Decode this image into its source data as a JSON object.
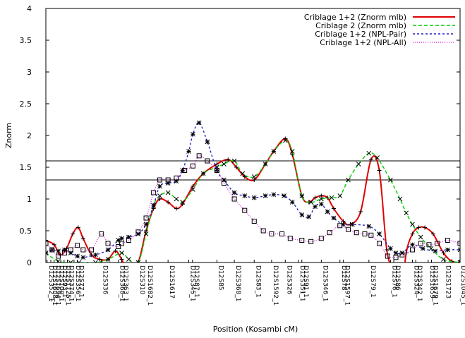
{
  "chart_data": {
    "type": "line",
    "xlabel": "Position (Kosambi cM)",
    "ylabel": "Znorm",
    "x_range": [
      0,
      100
    ],
    "ylim": [
      0,
      4
    ],
    "yticks": [
      "0",
      "0.5",
      "1",
      "1.5",
      "2",
      "2.5",
      "3",
      "3.5",
      "4"
    ],
    "grid": false,
    "legend_position": "top-right",
    "hlines": [
      1.3,
      1.6
    ],
    "markers": [
      {
        "label": "D12S352_1",
        "x": 0.3
      },
      {
        "label": "D12S1608_1",
        "x": 1.2
      },
      {
        "label": "D12S1694_1",
        "x": 2.0
      },
      {
        "label": "D12S100_1",
        "x": 2.8
      },
      {
        "label": "D12S93_1",
        "x": 3.6
      },
      {
        "label": "D12S1725_1",
        "x": 4.4
      },
      {
        "label": "D12S374_1",
        "x": 5.2
      },
      {
        "label": "D12S356_1",
        "x": 6.8
      },
      {
        "label": "D12S77_1",
        "x": 7.6
      },
      {
        "label": "D12S336",
        "x": 13.4
      },
      {
        "label": "D12S368_1",
        "x": 17.5
      },
      {
        "label": "D12S363_1",
        "x": 18.3
      },
      {
        "label": "D12S310",
        "x": 22.3
      },
      {
        "label": "D12S1682_1",
        "x": 24.2
      },
      {
        "label": "D12S1617",
        "x": 29.5
      },
      {
        "label": "D12S345_1",
        "x": 34.5
      },
      {
        "label": "D12S87_1",
        "x": 35.4
      },
      {
        "label": "D12S85",
        "x": 41.3
      },
      {
        "label": "D12S368_1",
        "x": 45.5
      },
      {
        "label": "D12S83_1",
        "x": 50.3
      },
      {
        "label": "D12S1592_1",
        "x": 54.5
      },
      {
        "label": "D12S326",
        "x": 57.8
      },
      {
        "label": "D12S351_1",
        "x": 61.0
      },
      {
        "label": "D12S91_1",
        "x": 61.8
      },
      {
        "label": "D12S346_1",
        "x": 66.5
      },
      {
        "label": "D12S78",
        "x": 71.0
      },
      {
        "label": "D12S1597_1",
        "x": 71.8
      },
      {
        "label": "D12S79_1",
        "x": 78.0
      },
      {
        "label": "D12S76_1",
        "x": 83.2
      },
      {
        "label": "D12S86",
        "x": 84.0
      },
      {
        "label": "D12S324",
        "x": 88.5
      },
      {
        "label": "D12S342_1",
        "x": 89.3
      },
      {
        "label": "D12S1659",
        "x": 92.3
      },
      {
        "label": "D12S1679_1",
        "x": 93.1
      },
      {
        "label": "D12S1723",
        "x": 96.2
      },
      {
        "label": "D12S1045_1",
        "x": 99.8
      }
    ],
    "series": [
      {
        "name": "Criblage 1+2 (Znorm mlb)",
        "color": "#e00000",
        "dash": "solid",
        "marker": "plus",
        "points": [
          [
            0,
            0.35
          ],
          [
            2,
            0.28
          ],
          [
            3.5,
            0.12
          ],
          [
            5,
            0.22
          ],
          [
            6.5,
            0.45
          ],
          [
            7.8,
            0.55
          ],
          [
            9,
            0.38
          ],
          [
            11,
            0.12
          ],
          [
            13,
            0.05
          ],
          [
            15,
            0.05
          ],
          [
            16.8,
            0.18
          ],
          [
            18.3,
            0.05
          ],
          [
            20,
            -0.15
          ],
          [
            22.3,
            0.0
          ],
          [
            24.2,
            0.5
          ],
          [
            26,
            0.85
          ],
          [
            27.5,
            1.0
          ],
          [
            29.5,
            0.95
          ],
          [
            31.5,
            0.85
          ],
          [
            33,
            0.92
          ],
          [
            35.5,
            1.2
          ],
          [
            38,
            1.4
          ],
          [
            41.3,
            1.55
          ],
          [
            44,
            1.62
          ],
          [
            46,
            1.5
          ],
          [
            48,
            1.35
          ],
          [
            50.3,
            1.3
          ],
          [
            53,
            1.55
          ],
          [
            55,
            1.75
          ],
          [
            57.8,
            1.95
          ],
          [
            59.5,
            1.7
          ],
          [
            61.8,
            1.05
          ],
          [
            63.5,
            0.95
          ],
          [
            65,
            1.02
          ],
          [
            66.5,
            1.05
          ],
          [
            68,
            1.02
          ],
          [
            69.5,
            0.85
          ],
          [
            71.8,
            0.65
          ],
          [
            73.5,
            0.6
          ],
          [
            76,
            0.8
          ],
          [
            78.5,
            1.62
          ],
          [
            80.5,
            1.45
          ],
          [
            82.3,
            0.2
          ],
          [
            84,
            -0.15
          ],
          [
            85.5,
            -0.6
          ],
          [
            87,
            0.15
          ],
          [
            88.5,
            0.45
          ],
          [
            90,
            0.55
          ],
          [
            91.5,
            0.55
          ],
          [
            93.5,
            0.45
          ],
          [
            96,
            0.15
          ],
          [
            98,
            0.02
          ],
          [
            100,
            0.0
          ]
        ]
      },
      {
        "name": "Criblage 2 (Znorm mlb)",
        "color": "#00cc00",
        "dash": "5 3",
        "marker": "x",
        "points": [
          [
            0,
            0.15
          ],
          [
            3,
            0.02
          ],
          [
            6,
            0.0
          ],
          [
            8,
            0.0
          ],
          [
            12,
            0.0
          ],
          [
            15,
            0.05
          ],
          [
            18.3,
            0.15
          ],
          [
            20,
            0.05
          ],
          [
            22.3,
            0.0
          ],
          [
            24.2,
            0.45
          ],
          [
            26,
            0.9
          ],
          [
            27.5,
            1.05
          ],
          [
            29.5,
            1.1
          ],
          [
            31.5,
            1.0
          ],
          [
            33,
            0.95
          ],
          [
            35.5,
            1.15
          ],
          [
            38,
            1.4
          ],
          [
            41.3,
            1.5
          ],
          [
            43,
            1.55
          ],
          [
            45.5,
            1.6
          ],
          [
            47.5,
            1.4
          ],
          [
            50.3,
            1.35
          ],
          [
            53,
            1.55
          ],
          [
            55,
            1.75
          ],
          [
            57.8,
            1.92
          ],
          [
            59.5,
            1.75
          ],
          [
            61.8,
            1.05
          ],
          [
            64,
            0.95
          ],
          [
            66.5,
            1.0
          ],
          [
            69,
            1.02
          ],
          [
            71,
            1.05
          ],
          [
            73,
            1.3
          ],
          [
            75.5,
            1.55
          ],
          [
            78,
            1.72
          ],
          [
            80,
            1.65
          ],
          [
            83.2,
            1.3
          ],
          [
            85.5,
            1.0
          ],
          [
            87,
            0.78
          ],
          [
            88.5,
            0.6
          ],
          [
            90.5,
            0.4
          ],
          [
            93,
            0.22
          ],
          [
            96,
            0.05
          ],
          [
            100,
            0.0
          ]
        ]
      },
      {
        "name": "Criblage 1+2 (NPL-Pair)",
        "color": "#2222cc",
        "dash": "3 3",
        "marker": "star",
        "points": [
          [
            0,
            0.15
          ],
          [
            1.5,
            0.2
          ],
          [
            3,
            0.18
          ],
          [
            4.5,
            0.2
          ],
          [
            6,
            0.15
          ],
          [
            7.6,
            0.1
          ],
          [
            9,
            0.08
          ],
          [
            12,
            0.12
          ],
          [
            15,
            0.2
          ],
          [
            17.5,
            0.35
          ],
          [
            18.3,
            0.38
          ],
          [
            20,
            0.4
          ],
          [
            22.3,
            0.45
          ],
          [
            24.2,
            0.6
          ],
          [
            26,
            0.9
          ],
          [
            27.5,
            1.2
          ],
          [
            29.5,
            1.25
          ],
          [
            31.5,
            1.28
          ],
          [
            33,
            1.45
          ],
          [
            34.5,
            1.75
          ],
          [
            35.5,
            2.02
          ],
          [
            37,
            2.2
          ],
          [
            39,
            1.9
          ],
          [
            41.3,
            1.45
          ],
          [
            43,
            1.3
          ],
          [
            45.5,
            1.1
          ],
          [
            48,
            1.05
          ],
          [
            50.3,
            1.02
          ],
          [
            53,
            1.05
          ],
          [
            55,
            1.07
          ],
          [
            57.5,
            1.05
          ],
          [
            59.5,
            0.95
          ],
          [
            61.8,
            0.75
          ],
          [
            63.5,
            0.72
          ],
          [
            65,
            0.88
          ],
          [
            66.5,
            0.92
          ],
          [
            68,
            0.8
          ],
          [
            69.5,
            0.7
          ],
          [
            71.8,
            0.6
          ],
          [
            74,
            0.6
          ],
          [
            78,
            0.57
          ],
          [
            80.5,
            0.45
          ],
          [
            83.2,
            0.22
          ],
          [
            84.5,
            0.15
          ],
          [
            86,
            0.15
          ],
          [
            88.5,
            0.28
          ],
          [
            91,
            0.22
          ],
          [
            94,
            0.18
          ],
          [
            97,
            0.2
          ],
          [
            100,
            0.2
          ]
        ]
      },
      {
        "name": "Criblage 1+2 (NPL-All)",
        "color": "#dd33dd",
        "dash": "1 2",
        "marker": "square",
        "points": [
          [
            0,
            0.3
          ],
          [
            1.5,
            0.2
          ],
          [
            3,
            0.1
          ],
          [
            4.5,
            0.15
          ],
          [
            6,
            0.2
          ],
          [
            7.6,
            0.27
          ],
          [
            9,
            0.2
          ],
          [
            11,
            0.2
          ],
          [
            13.4,
            0.45
          ],
          [
            15,
            0.3
          ],
          [
            17.5,
            0.25
          ],
          [
            18.3,
            0.3
          ],
          [
            20,
            0.35
          ],
          [
            22.3,
            0.48
          ],
          [
            24.2,
            0.7
          ],
          [
            26,
            1.1
          ],
          [
            27.5,
            1.3
          ],
          [
            29.5,
            1.3
          ],
          [
            31.5,
            1.33
          ],
          [
            33.5,
            1.45
          ],
          [
            35.5,
            1.52
          ],
          [
            37,
            1.68
          ],
          [
            39,
            1.6
          ],
          [
            41.3,
            1.45
          ],
          [
            43,
            1.25
          ],
          [
            45.5,
            1.0
          ],
          [
            48,
            0.82
          ],
          [
            50.3,
            0.65
          ],
          [
            52.5,
            0.5
          ],
          [
            54.5,
            0.45
          ],
          [
            57,
            0.45
          ],
          [
            59,
            0.38
          ],
          [
            61.8,
            0.35
          ],
          [
            64,
            0.33
          ],
          [
            66.5,
            0.38
          ],
          [
            68.5,
            0.47
          ],
          [
            71,
            0.58
          ],
          [
            73,
            0.52
          ],
          [
            75,
            0.47
          ],
          [
            77,
            0.45
          ],
          [
            78.5,
            0.43
          ],
          [
            80.5,
            0.3
          ],
          [
            82.5,
            0.1
          ],
          [
            84.5,
            0.08
          ],
          [
            86,
            0.12
          ],
          [
            88.5,
            0.2
          ],
          [
            90.5,
            0.3
          ],
          [
            92.5,
            0.28
          ],
          [
            94.5,
            0.3
          ],
          [
            97,
            0.35
          ],
          [
            100,
            0.3
          ]
        ]
      }
    ]
  }
}
